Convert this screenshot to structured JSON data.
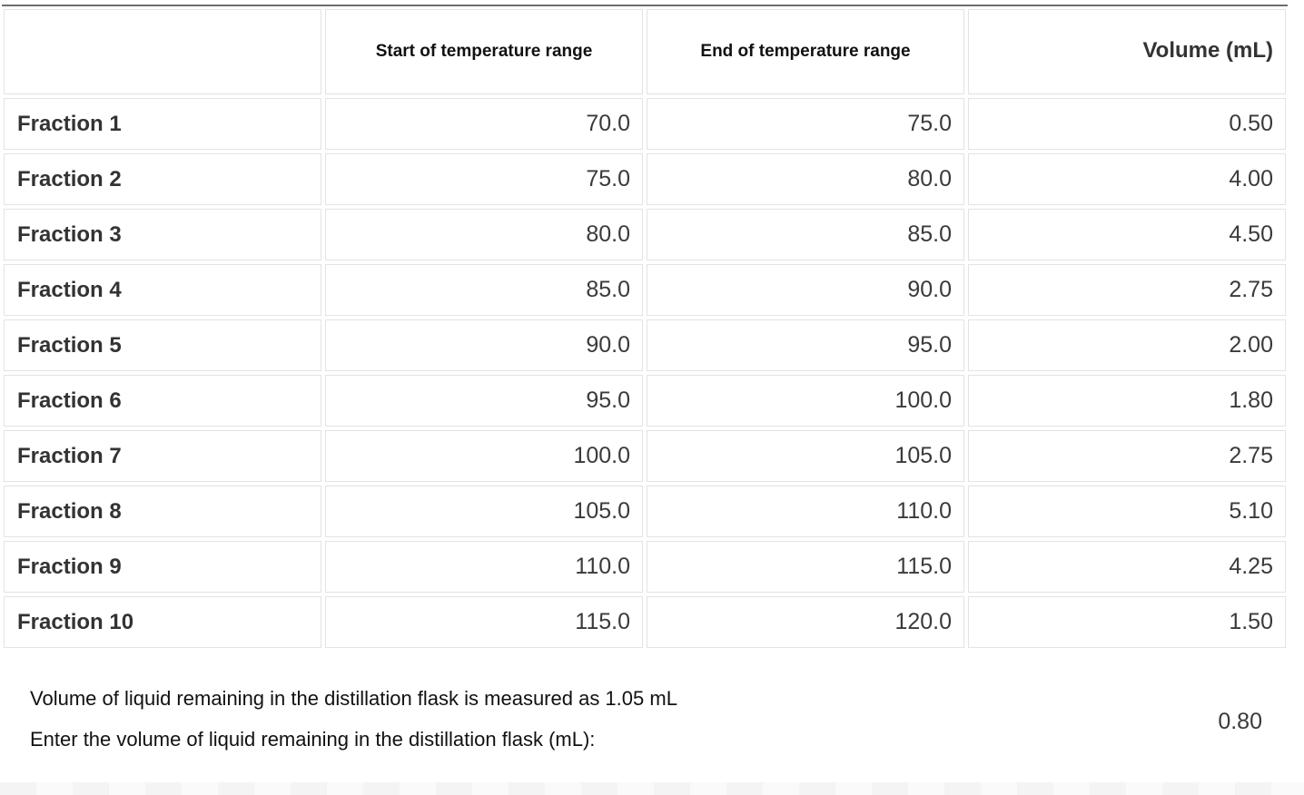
{
  "table": {
    "headers": [
      "",
      "Start of temperature range",
      "End of temperature range",
      "Volume (mL)"
    ],
    "rows": [
      {
        "label": "Fraction 1",
        "start": "70.0",
        "end": "75.0",
        "volume": "0.50"
      },
      {
        "label": "Fraction 2",
        "start": "75.0",
        "end": "80.0",
        "volume": "4.00"
      },
      {
        "label": "Fraction 3",
        "start": "80.0",
        "end": "85.0",
        "volume": "4.50"
      },
      {
        "label": "Fraction 4",
        "start": "85.0",
        "end": "90.0",
        "volume": "2.75"
      },
      {
        "label": "Fraction 5",
        "start": "90.0",
        "end": "95.0",
        "volume": "2.00"
      },
      {
        "label": "Fraction 6",
        "start": "95.0",
        "end": "100.0",
        "volume": "1.80"
      },
      {
        "label": "Fraction 7",
        "start": "100.0",
        "end": "105.0",
        "volume": "2.75"
      },
      {
        "label": "Fraction 8",
        "start": "105.0",
        "end": "110.0",
        "volume": "5.10"
      },
      {
        "label": "Fraction 9",
        "start": "110.0",
        "end": "115.0",
        "volume": "4.25"
      },
      {
        "label": "Fraction 10",
        "start": "115.0",
        "end": "120.0",
        "volume": "1.50"
      }
    ]
  },
  "footer": {
    "measured_text": "Volume of liquid remaining in the distillation flask is measured as 1.05 mL",
    "prompt_text": "Enter the volume of liquid remaining in the distillation flask (mL):",
    "entered_value": "0.80"
  }
}
